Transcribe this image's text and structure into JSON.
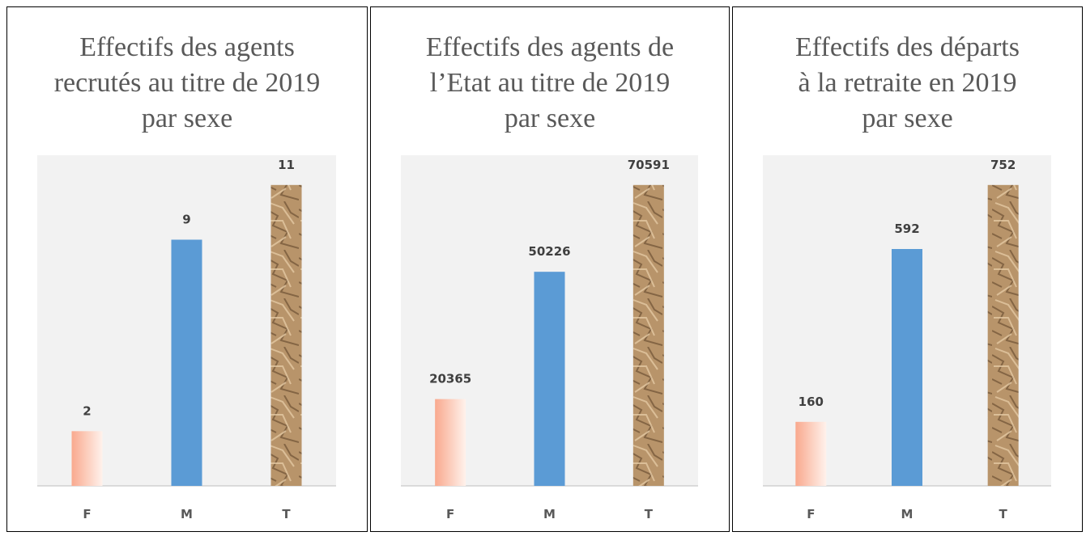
{
  "chart_data": [
    {
      "type": "bar",
      "title": "Effectifs des agents recrutés au titre de 2019 par sexe",
      "categories": [
        "F",
        "M",
        "T"
      ],
      "values": [
        2,
        9,
        11
      ],
      "colors": [
        "#f9a98e",
        "#5b9bd5",
        "#b8946a"
      ]
    },
    {
      "type": "bar",
      "title": "Effectifs des agents de l’Etat au titre de 2019 par sexe",
      "categories": [
        "F",
        "M",
        "T"
      ],
      "values": [
        20365,
        50226,
        70591
      ],
      "colors": [
        "#f9a98e",
        "#5b9bd5",
        "#b8946a"
      ]
    },
    {
      "type": "bar",
      "title": "Effectifs des départs à la retraite en 2019 par sexe",
      "categories": [
        "F",
        "M",
        "T"
      ],
      "values": [
        160,
        592,
        752
      ],
      "colors": [
        "#f9a98e",
        "#5b9bd5",
        "#b8946a"
      ]
    }
  ]
}
